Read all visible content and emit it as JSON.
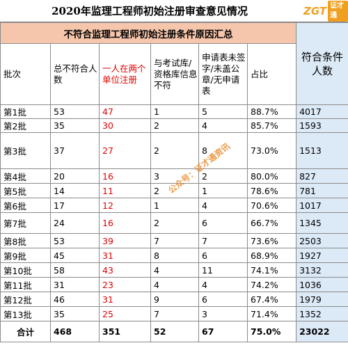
{
  "title": "2020年监理工程师初始注册审查意见情况",
  "logo": {
    "letters": "ZGT",
    "box": "证才通"
  },
  "banner": "不符合监理工程师初始注册条件原因汇总",
  "headers": {
    "batch": "批次",
    "total_fail": "总不符合人数",
    "two_units": "一人在两个单位注册",
    "db_mismatch": "与考试库/资格库信息不符",
    "unsigned": "申请表未签字/未盖公章/无申请表",
    "ratio": "占比",
    "qualified": "符合条件人数"
  },
  "rows": [
    {
      "batch": "第1批",
      "total": "53",
      "two": "47",
      "db": "1",
      "unsigned": "5",
      "ratio": "88.7%",
      "qualified": "4017"
    },
    {
      "batch": "第2批",
      "total": "35",
      "two": "30",
      "db": "2",
      "unsigned": "4",
      "ratio": "85.7%",
      "qualified": "1593"
    },
    {
      "batch": "第3批",
      "total": "37",
      "two": "27",
      "db": "2",
      "unsigned": "8",
      "ratio": "73.0%",
      "qualified": "1513"
    },
    {
      "batch": "第4批",
      "total": "20",
      "two": "16",
      "db": "3",
      "unsigned": "2",
      "ratio": "80.0%",
      "qualified": "827"
    },
    {
      "batch": "第5批",
      "total": "14",
      "two": "11",
      "db": "2",
      "unsigned": "1",
      "ratio": "78.6%",
      "qualified": "781"
    },
    {
      "batch": "第6批",
      "total": "17",
      "two": "12",
      "db": "1",
      "unsigned": "4",
      "ratio": "70.6%",
      "qualified": "1017"
    },
    {
      "batch": "第7批",
      "total": "24",
      "two": "16",
      "db": "2",
      "unsigned": "6",
      "ratio": "66.7%",
      "qualified": "1345"
    },
    {
      "batch": "第8批",
      "total": "53",
      "two": "39",
      "db": "7",
      "unsigned": "7",
      "ratio": "73.6%",
      "qualified": "2503"
    },
    {
      "batch": "第9批",
      "total": "45",
      "two": "31",
      "db": "8",
      "unsigned": "6",
      "ratio": "68.9%",
      "qualified": "1927"
    },
    {
      "batch": "第10批",
      "total": "58",
      "two": "43",
      "db": "4",
      "unsigned": "11",
      "ratio": "74.1%",
      "qualified": "3132"
    },
    {
      "batch": "第11批",
      "total": "31",
      "two": "23",
      "db": "4",
      "unsigned": "4",
      "ratio": "74.2%",
      "qualified": "1036"
    },
    {
      "batch": "第12批",
      "total": "46",
      "two": "31",
      "db": "9",
      "unsigned": "6",
      "ratio": "67.4%",
      "qualified": "1979"
    },
    {
      "batch": "第13批",
      "total": "35",
      "two": "25",
      "db": "7",
      "unsigned": "3",
      "ratio": "71.4%",
      "qualified": "1352"
    }
  ],
  "total": {
    "label": "合计",
    "total": "468",
    "two": "351",
    "db": "52",
    "unsigned": "67",
    "ratio": "75.0%",
    "qualified": "23022"
  },
  "watermark": "公众号：证才通资讯"
}
